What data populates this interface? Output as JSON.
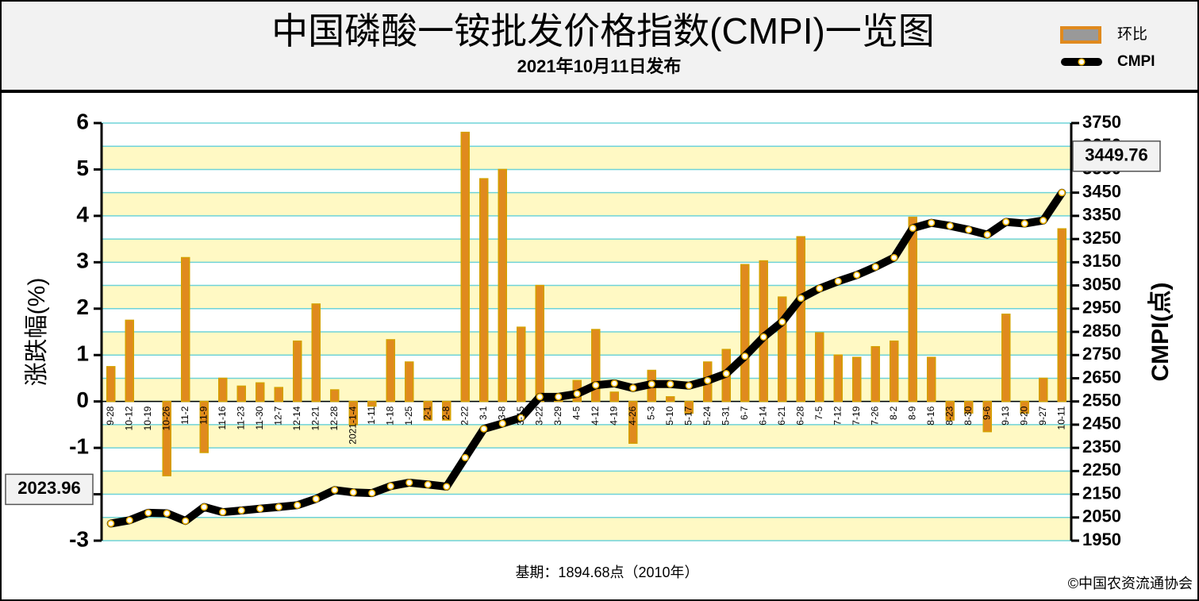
{
  "chart_data": {
    "type": "bar",
    "title": "中国磷酸一铵批发价格指数(CMPI)一览图",
    "subtitle": "2021年10月11日发布",
    "y_label": "涨跌幅(%)",
    "y2_label": "CMPI(点)",
    "base_note": "基期：1894.68点（2010年）",
    "source": "©中国农资流通协会",
    "categories": [
      "9-28",
      "10-12",
      "10-19",
      "10-26",
      "11-2",
      "11-9",
      "11-16",
      "11-23",
      "11-30",
      "12-7",
      "12-14",
      "12-21",
      "12-28",
      "2021-1-4",
      "1-11",
      "1-18",
      "1-25",
      "2-1",
      "2-8",
      "2-22",
      "3-1",
      "3-8",
      "3-15",
      "3-22",
      "3-29",
      "4-5",
      "4-12",
      "4-19",
      "4-26",
      "5-3",
      "5-10",
      "5-17",
      "5-24",
      "5-31",
      "6-7",
      "6-14",
      "6-21",
      "6-28",
      "7-5",
      "7-12",
      "7-19",
      "7-26",
      "8-2",
      "8-9",
      "8-16",
      "8-23",
      "8-30",
      "9-6",
      "9-13",
      "9-20",
      "9-27",
      "10-11"
    ],
    "series": [
      {
        "name": "环比",
        "color": "#e08a1e",
        "values": [
          0.75,
          1.75,
          0,
          -1.6,
          3.1,
          -1.1,
          0.5,
          0.33,
          0.4,
          0.3,
          1.3,
          2.1,
          0.25,
          -0.5,
          -0.1,
          1.33,
          0.85,
          -0.4,
          -0.4,
          5.8,
          4.8,
          5.0,
          1.6,
          2.5,
          0.05,
          0.45,
          1.55,
          0.2,
          -0.9,
          0.67,
          0.1,
          -0.25,
          0.85,
          1.12,
          2.95,
          3.03,
          2.25,
          3.55,
          1.48,
          1.0,
          0.95,
          1.18,
          1.3,
          3.97,
          0.95,
          -0.4,
          -0.25,
          -0.65,
          1.88,
          -0.25,
          0.5,
          3.72
        ]
      },
      {
        "name": "CMPI",
        "type": "line",
        "axis": "y2",
        "color": "#000000",
        "values": [
          2023.96,
          2038,
          2070,
          2068,
          2035,
          2095,
          2073,
          2080,
          2088,
          2095,
          2103,
          2130,
          2168,
          2158,
          2155,
          2185,
          2200,
          2192,
          2183,
          2308,
          2432,
          2455,
          2480,
          2570,
          2570,
          2583,
          2620,
          2628,
          2608,
          2625,
          2625,
          2618,
          2640,
          2670,
          2745,
          2828,
          2893,
          2995,
          3037,
          3068,
          3095,
          3130,
          3170,
          3297,
          3320,
          3307,
          3290,
          3269,
          3324,
          3317,
          3330,
          3449.76
        ]
      }
    ],
    "ylim": [
      -3,
      6
    ],
    "yticks": [
      -3,
      -2,
      -1,
      0,
      1,
      2,
      3,
      4,
      5,
      6
    ],
    "y2lim": [
      1950,
      3750
    ],
    "y2ticks": [
      1950,
      2050,
      2150,
      2250,
      2350,
      2450,
      2550,
      2650,
      2750,
      2850,
      2950,
      3050,
      3150,
      3250,
      3350,
      3450,
      3550,
      3650,
      3750
    ],
    "grid": true
  }
}
